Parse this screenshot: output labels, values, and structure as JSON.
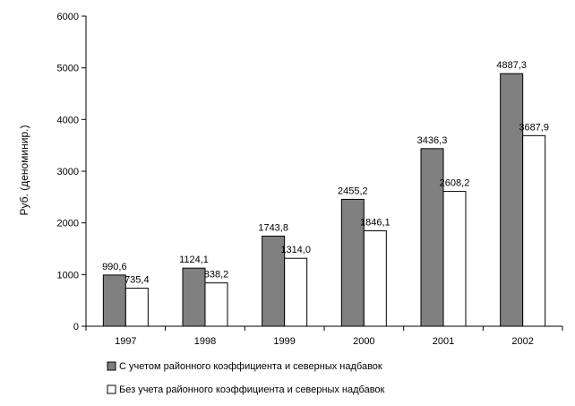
{
  "chart_data": {
    "type": "bar",
    "title": "",
    "xlabel": "",
    "ylabel": "Руб.  (деноминир.)",
    "ylim": [
      0,
      6000
    ],
    "yticks": [
      0,
      1000,
      2000,
      3000,
      4000,
      5000,
      6000
    ],
    "grid": false,
    "legend_position": "bottom",
    "categories": [
      "1997",
      "1998",
      "1999",
      "2000",
      "2001",
      "2002"
    ],
    "series": [
      {
        "name": "С учетом районного коэффициента и северных надбавок",
        "color": "#808080",
        "values": [
          990.6,
          1124.1,
          1743.8,
          2455.2,
          3436.3,
          4887.3
        ],
        "labels": [
          "990,6",
          "1124,1",
          "1743,8",
          "2455,2",
          "3436,3",
          "4887,3"
        ]
      },
      {
        "name": "Без учета районного коэффициента и северных надбавок",
        "color": "#ffffff",
        "values": [
          735.4,
          838.2,
          1314.0,
          1846.1,
          2608.2,
          3687.9
        ],
        "labels": [
          "735,4",
          "838,2",
          "1314,0",
          "1846,1",
          "2608,2",
          "3687,9"
        ]
      }
    ]
  }
}
